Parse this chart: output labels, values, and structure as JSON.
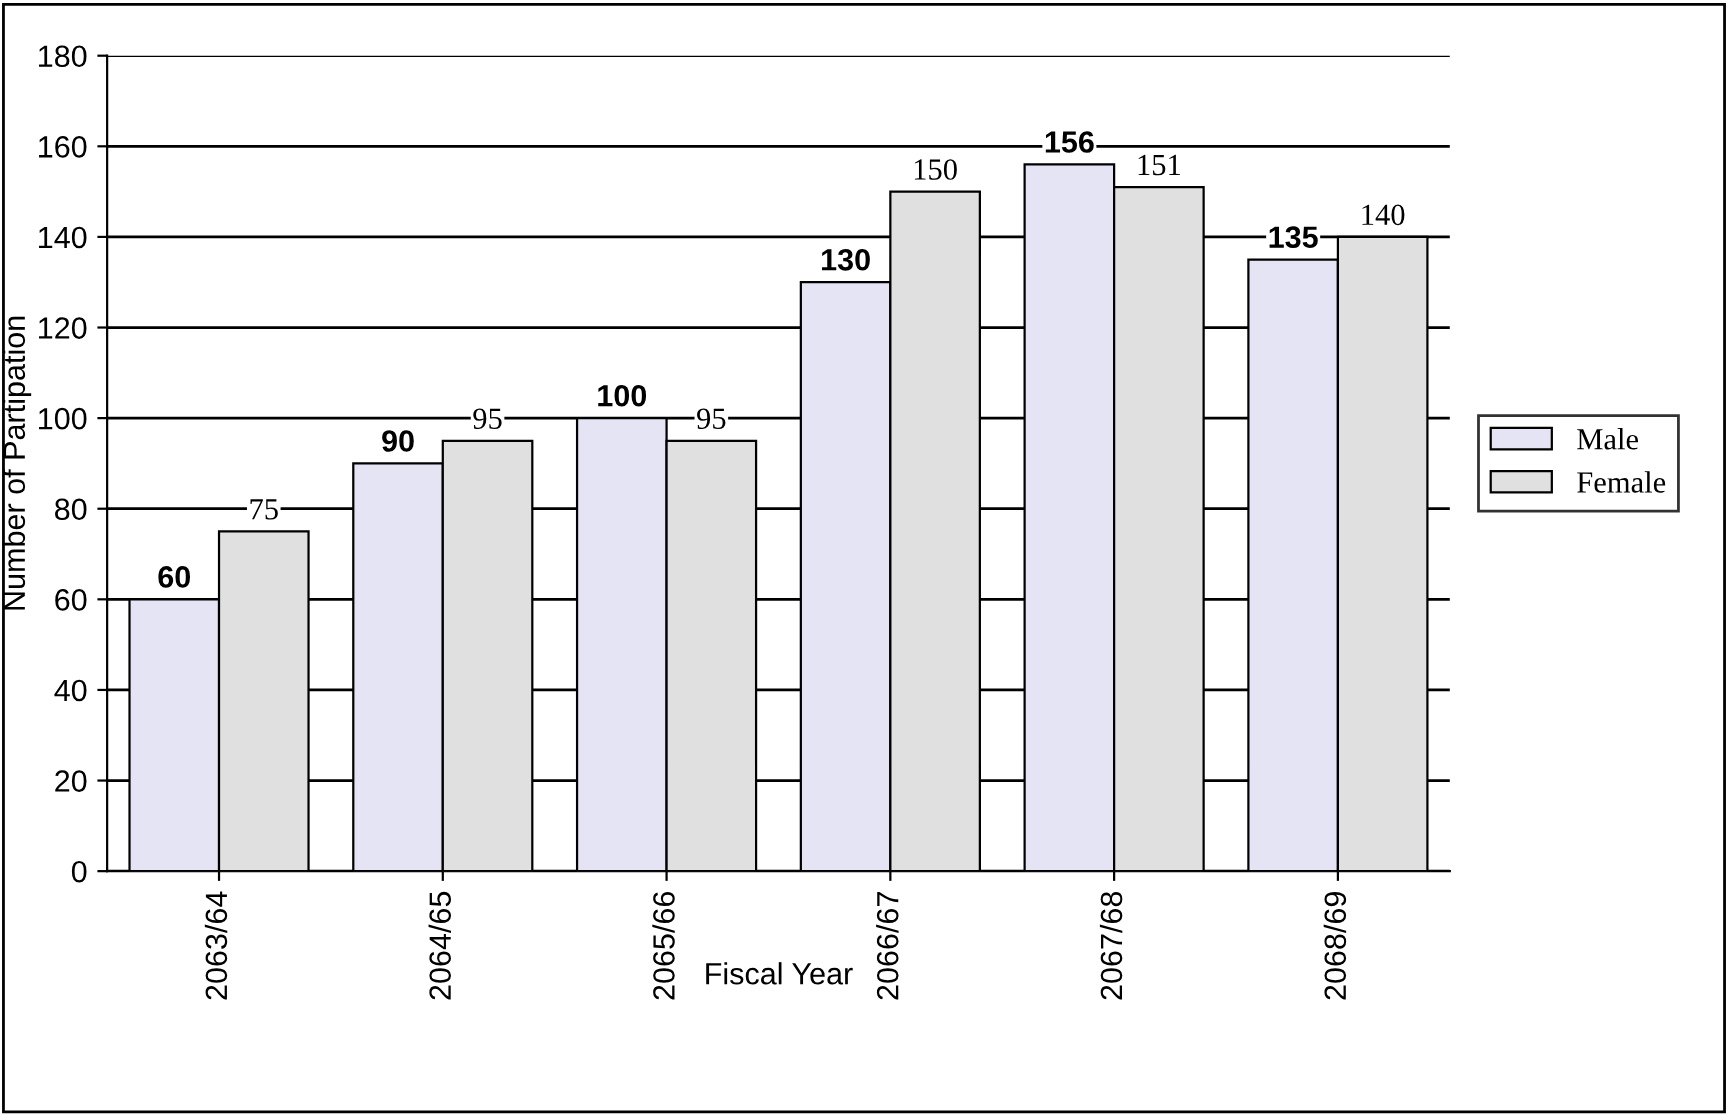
{
  "chart_data": {
    "type": "bar",
    "xlabel": "Fiscal Year",
    "ylabel": "Number of Partipation",
    "categories": [
      "2063/64",
      "2064/65",
      "2065/66",
      "2066/67",
      "2067/68",
      "2068/69"
    ],
    "series": [
      {
        "name": "Male",
        "color": "#e4e4f4",
        "values": [
          60,
          90,
          100,
          130,
          156,
          135
        ]
      },
      {
        "name": "Female",
        "color": "#e0e0e0",
        "values": [
          75,
          95,
          95,
          150,
          151,
          140
        ]
      }
    ],
    "ylim": [
      0,
      180
    ],
    "yticks": [
      0,
      20,
      40,
      60,
      80,
      100,
      120,
      140,
      160,
      180
    ],
    "grid": "y",
    "legend": "right",
    "data_labels": true
  }
}
